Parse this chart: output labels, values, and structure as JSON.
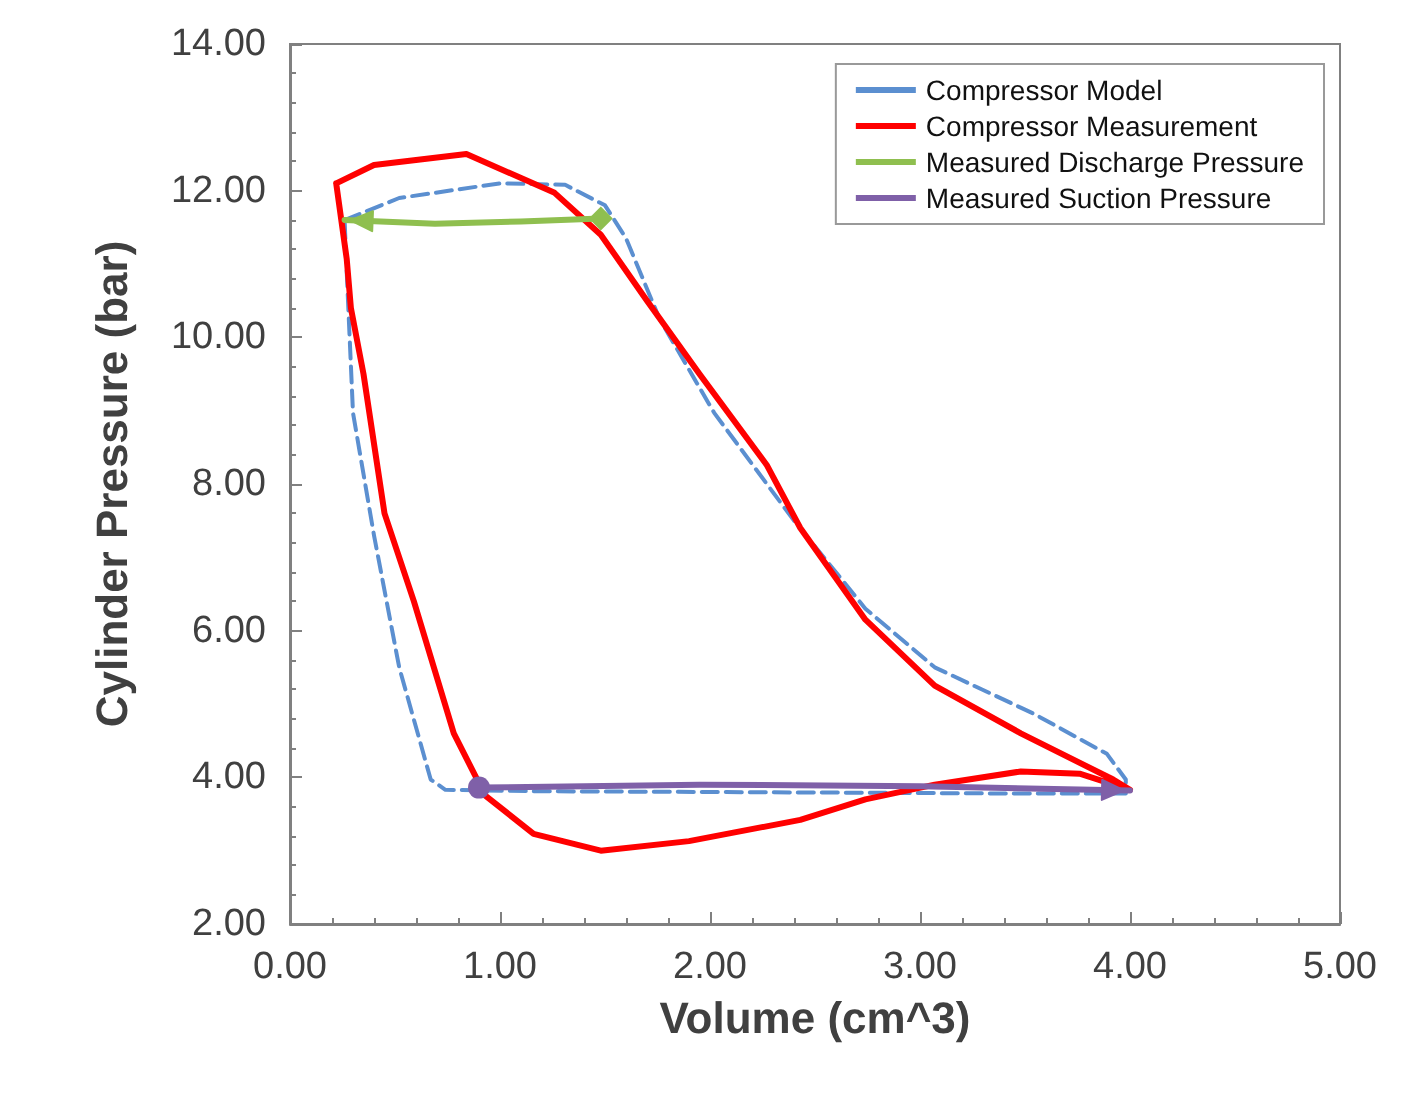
{
  "chart_data": {
    "type": "line",
    "xlabel": "Volume (cm^3)",
    "ylabel": "Cylinder Pressure (bar)",
    "xlim": [
      0,
      5
    ],
    "ylim": [
      2,
      14
    ],
    "xticks": [
      {
        "value": 0,
        "label": "0.00"
      },
      {
        "value": 1,
        "label": "1.00"
      },
      {
        "value": 2,
        "label": "2.00"
      },
      {
        "value": 3,
        "label": "3.00"
      },
      {
        "value": 4,
        "label": "4.00"
      },
      {
        "value": 5,
        "label": "5.00"
      }
    ],
    "yticks": [
      {
        "value": 2,
        "label": "2.00"
      },
      {
        "value": 4,
        "label": "4.00"
      },
      {
        "value": 6,
        "label": "6.00"
      },
      {
        "value": 8,
        "label": "8.00"
      },
      {
        "value": 10,
        "label": "10.00"
      },
      {
        "value": 12,
        "label": "12.00"
      },
      {
        "value": 14,
        "label": "14.00"
      }
    ],
    "grid": false,
    "legend": "top right",
    "series": [
      {
        "name": "Compressor Model",
        "color": "#5b8fd0",
        "line_style": "dashed",
        "x": [
          0.26,
          0.52,
          1.0,
          1.31,
          1.5,
          1.6,
          1.76,
          2.02,
          2.4,
          2.74,
          3.07,
          3.54,
          3.89,
          3.98,
          3.98,
          null,
          3.98,
          3.4,
          2.74,
          2.0,
          1.2,
          0.74,
          0.67,
          0.52,
          0.4,
          0.3,
          0.27,
          0.26
        ],
        "values": [
          11.6,
          11.9,
          12.1,
          12.08,
          11.8,
          11.35,
          10.25,
          8.97,
          7.5,
          6.3,
          5.5,
          4.87,
          4.32,
          3.97,
          3.78,
          null,
          3.78,
          3.78,
          3.79,
          3.8,
          3.81,
          3.83,
          3.97,
          5.5,
          7.3,
          8.97,
          10.9,
          11.6
        ]
      },
      {
        "name": "Compressor Measurement",
        "color": "#ff0000",
        "line_style": "solid",
        "x": [
          0.22,
          0.4,
          0.84,
          1.26,
          1.48,
          1.7,
          1.95,
          2.27,
          2.43,
          2.74,
          3.07,
          3.48,
          3.92,
          4.0,
          null,
          4.0,
          3.76,
          3.48,
          3.07,
          2.74,
          2.43,
          1.9,
          1.48,
          1.16,
          0.93,
          0.78,
          0.59,
          0.45,
          0.35,
          0.29,
          0.27,
          0.22
        ],
        "values": [
          12.1,
          12.35,
          12.5,
          11.97,
          11.4,
          10.5,
          9.5,
          8.26,
          7.4,
          6.15,
          5.25,
          4.6,
          3.97,
          3.83,
          null,
          3.83,
          4.05,
          4.08,
          3.9,
          3.7,
          3.42,
          3.13,
          3.0,
          3.23,
          3.75,
          4.6,
          6.4,
          7.6,
          9.5,
          10.4,
          11.07,
          12.1
        ]
      },
      {
        "name": "Measured Discharge Pressure",
        "color": "#8fbf4f",
        "line_style": "solid",
        "x": [
          1.48,
          1.1,
          0.69,
          0.26
        ],
        "values": [
          11.62,
          11.58,
          11.55,
          11.6
        ]
      },
      {
        "name": "Measured Suction Pressure",
        "color": "#7f60a8",
        "line_style": "solid",
        "x": [
          0.9,
          1.95,
          3.0,
          4.0
        ],
        "values": [
          3.86,
          3.9,
          3.88,
          3.82
        ]
      }
    ]
  }
}
